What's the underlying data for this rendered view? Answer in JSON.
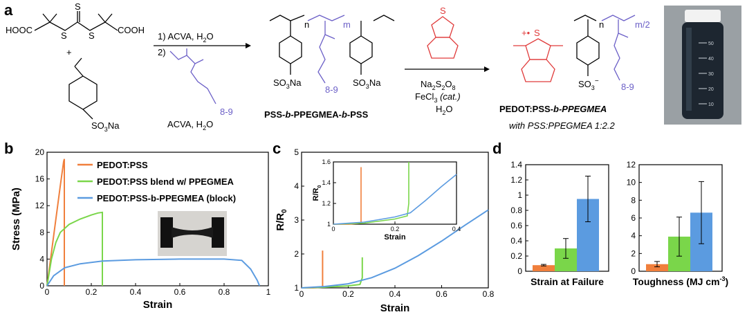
{
  "panel_a": {
    "letter": "a",
    "raft_agent": {
      "left": "HOOC",
      "s_top": "S",
      "s1": "S",
      "s2": "S",
      "right": "COOH"
    },
    "plus": "+",
    "styrene": {
      "group": "SO",
      "sub": "3",
      "na": "Na"
    },
    "step1": "1) ACVA, H",
    "step1_sub": "2",
    "step1_end": "O",
    "step2": "2)",
    "monomer_sub": "8-9",
    "monomer_cond": "ACVA, H",
    "monomer_cond_sub": "2",
    "monomer_cond_end": "O",
    "poly_n": "n",
    "poly_m": "m",
    "poly_sub": "8-9",
    "poly_so3na_1": "SO",
    "poly_so3na_1_sub": "3",
    "poly_so3na_1_end": "Na",
    "poly_so3na_2": "SO",
    "poly_so3na_2_sub": "3",
    "poly_so3na_2_end": "Na",
    "poly_name_1": "PSS-",
    "poly_name_b1": "b",
    "poly_name_2": "-PPEGMEA-",
    "poly_name_b2": "b",
    "poly_name_3": "-PSS",
    "edot_s": "S",
    "reagent1": "Na",
    "reagent1_s1": "2",
    "reagent1_mid": "S",
    "reagent1_s2": "2",
    "reagent1_mid2": "O",
    "reagent1_s3": "8",
    "reagent2": "FeCl",
    "reagent2_sub": "3",
    "reagent2_cat": " (cat.)",
    "reagent3": "H",
    "reagent3_sub": "2",
    "reagent3_end": "O",
    "prod_s": "S",
    "prod_charge": "+•",
    "prod_n": "n",
    "prod_m2": "m/2",
    "prod_so3": "SO",
    "prod_so3_sub": "3",
    "prod_so3_charge": "−",
    "prod_sub": "8-9",
    "product_name_1": "PEDOT:PSS-",
    "product_name_b": "b",
    "product_name_2": "-PPEGMEA",
    "product_ratio": "with PSS:PPEGMEA 1:2.2",
    "vial_marks": [
      "50",
      "40",
      "30",
      "20",
      "10"
    ]
  },
  "panel_b": {
    "letter": "b",
    "chart_data": {
      "type": "line",
      "xlabel": "Strain",
      "ylabel": "Stress (MPa)",
      "xlim": [
        0,
        1
      ],
      "ylim": [
        0,
        20
      ],
      "xticks": [
        "0",
        "0.2",
        "0.4",
        "0.6",
        "0.8",
        "1"
      ],
      "yticks": [
        "0",
        "4",
        "8",
        "12",
        "16",
        "20"
      ],
      "legend_position": "top-right",
      "series": [
        {
          "name": "PEDOT:PSS",
          "color": "#f07f3c",
          "x": [
            0,
            0.02,
            0.04,
            0.06,
            0.075,
            0.078,
            0.078
          ],
          "y": [
            0,
            5,
            10,
            15,
            18.6,
            19,
            0
          ]
        },
        {
          "name": "PEDOT:PSS blend w/ PPEGMEA",
          "color": "#7ad64a",
          "x": [
            0,
            0.01,
            0.02,
            0.04,
            0.06,
            0.1,
            0.15,
            0.2,
            0.23,
            0.25,
            0.25
          ],
          "y": [
            0,
            2,
            4,
            6.5,
            8,
            9.2,
            10,
            10.6,
            10.9,
            11,
            0
          ]
        },
        {
          "name": "PEDOT:PSS-b-PPEGMEA (block)",
          "color": "#5b9be0",
          "x": [
            0,
            0.03,
            0.08,
            0.15,
            0.25,
            0.4,
            0.6,
            0.8,
            0.88,
            0.92,
            0.95,
            0.96
          ],
          "y": [
            0,
            1.5,
            2.7,
            3.3,
            3.7,
            3.9,
            4.0,
            4.0,
            3.8,
            2.5,
            0.8,
            0
          ]
        }
      ]
    }
  },
  "panel_c": {
    "letter": "c",
    "chart_data": {
      "type": "line",
      "xlabel": "Strain",
      "ylabel": "R/R",
      "ylabel_sub": "0",
      "xlim": [
        0,
        0.8
      ],
      "ylim": [
        1,
        5
      ],
      "xticks": [
        "0",
        "0.2",
        "0.4",
        "0.6",
        "0.8"
      ],
      "yticks": [
        "1",
        "2",
        "3",
        "4",
        "5"
      ],
      "series": [
        {
          "name": "PEDOT:PSS",
          "color": "#f07f3c",
          "x": [
            0,
            0.05,
            0.09,
            0.09
          ],
          "y": [
            1,
            1,
            1.02,
            2.1
          ]
        },
        {
          "name": "PEDOT:PSS blend w/ PPEGMEA",
          "color": "#7ad64a",
          "x": [
            0,
            0.1,
            0.2,
            0.25,
            0.26,
            0.26
          ],
          "y": [
            1,
            1.02,
            1.06,
            1.1,
            1.3,
            1.9
          ]
        },
        {
          "name": "PEDOT:PSS-b-PPEGMEA (block)",
          "color": "#5b9be0",
          "x": [
            0,
            0.1,
            0.2,
            0.3,
            0.4,
            0.5,
            0.6,
            0.7,
            0.8
          ],
          "y": [
            1,
            1.04,
            1.12,
            1.3,
            1.58,
            1.95,
            2.38,
            2.85,
            3.3
          ]
        }
      ],
      "inset": {
        "xlabel": "Strain",
        "ylabel": "R/R",
        "ylabel_sub": "0",
        "xlim": [
          0,
          0.4
        ],
        "ylim": [
          1,
          1.6
        ],
        "xticks": [
          "0",
          "0.2",
          "0.4"
        ],
        "yticks": [
          "1",
          "1.2",
          "1.4",
          "1.6"
        ],
        "series": [
          {
            "color": "#f07f3c",
            "x": [
              0,
              0.05,
              0.09,
              0.09
            ],
            "y": [
              1,
              1,
              1.01,
              1.55
            ]
          },
          {
            "color": "#7ad64a",
            "x": [
              0,
              0.1,
              0.2,
              0.24,
              0.245,
              0.245
            ],
            "y": [
              1,
              1.01,
              1.05,
              1.08,
              1.2,
              1.6
            ]
          },
          {
            "color": "#5b9be0",
            "x": [
              0,
              0.1,
              0.2,
              0.25,
              0.3,
              0.35,
              0.4
            ],
            "y": [
              1,
              1.02,
              1.07,
              1.11,
              1.23,
              1.36,
              1.48
            ]
          }
        ]
      }
    }
  },
  "panel_d": {
    "letter": "d",
    "chart_data": [
      {
        "type": "bar",
        "xlabel": "Strain at Failure",
        "ylim": [
          0,
          1.4
        ],
        "yticks": [
          "0",
          "0.2",
          "0.4",
          "0.6",
          "0.8",
          "1",
          "1.2",
          "1.4"
        ],
        "values": [
          0.08,
          0.3,
          0.95
        ],
        "errors": [
          0.01,
          0.13,
          0.3
        ],
        "colors": [
          "#f07f3c",
          "#7ad64a",
          "#5b9be0"
        ]
      },
      {
        "type": "bar",
        "xlabel": "Toughness (MJ cm",
        "xlabel_sup": "-3",
        "xlabel_end": ")",
        "ylim": [
          0,
          12
        ],
        "yticks": [
          "0",
          "2",
          "4",
          "6",
          "8",
          "10",
          "12"
        ],
        "values": [
          0.8,
          3.9,
          6.6
        ],
        "errors": [
          0.3,
          2.2,
          3.5
        ],
        "colors": [
          "#f07f3c",
          "#7ad64a",
          "#5b9be0"
        ]
      }
    ]
  }
}
